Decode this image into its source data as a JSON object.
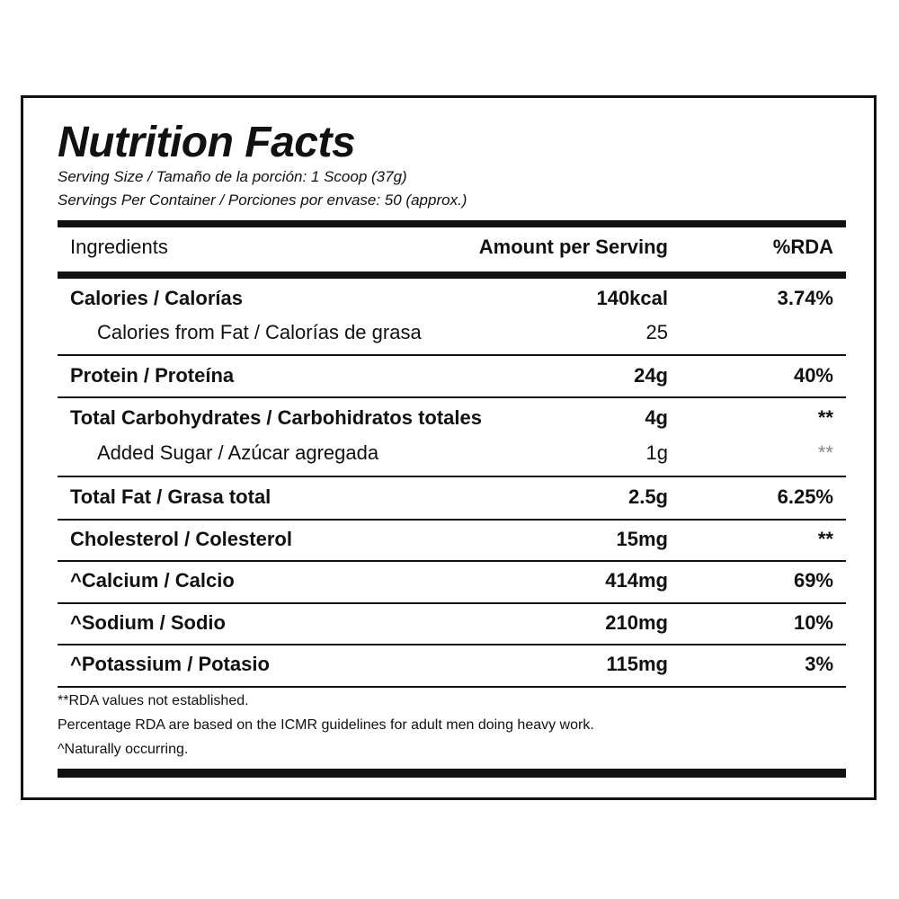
{
  "header": {
    "title": "Nutrition Facts",
    "serving_size": "Serving Size / Tamaño de la porción: 1 Scoop (37g)",
    "servings_per_container": "Servings Per Container / Porciones por envase: 50 (approx.)"
  },
  "table": {
    "columns": [
      "Ingredients",
      "Amount per Serving",
      "%RDA"
    ],
    "rows": [
      [
        "Calories / Calorías",
        "140kcal",
        "3.74%"
      ],
      [
        "Calories from Fat / Calorías de grasa",
        "25",
        ""
      ],
      [
        "Protein / Proteína",
        "24g",
        "40%"
      ],
      [
        "Total Carbohydrates / Carbohidratos totales",
        "4g",
        "**"
      ],
      [
        "Added Sugar / Azúcar agregada",
        "1g",
        "**"
      ],
      [
        "Total Fat / Grasa total",
        "2.5g",
        "6.25%"
      ],
      [
        "Cholesterol / Colesterol",
        "15mg",
        "**"
      ],
      [
        "^Calcium / Calcio",
        "414mg",
        "69%"
      ],
      [
        "^Sodium / Sodio",
        "210mg",
        "10%"
      ],
      [
        "^Potassium / Potasio",
        "115mg",
        "3%"
      ]
    ]
  },
  "footnotes": [
    "**RDA values not established.",
    "Percentage RDA are based on the ICMR guidelines for adult men doing heavy work.",
    "^Naturally occurring."
  ]
}
